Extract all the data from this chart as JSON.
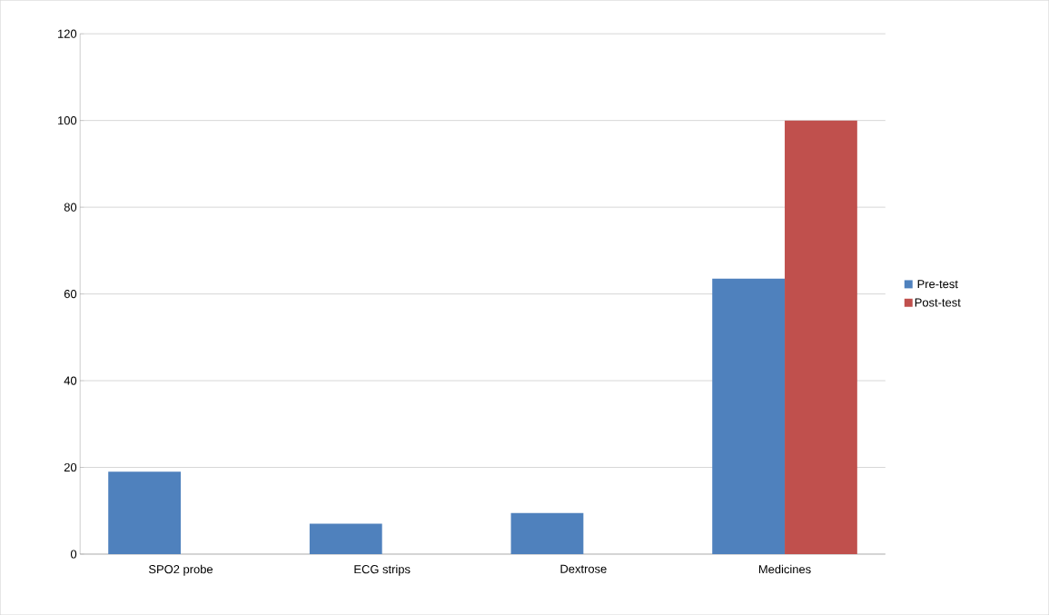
{
  "chart_data": {
    "type": "bar",
    "categories": [
      "SPO2 probe",
      "ECG strips",
      "Dextrose",
      "Medicines"
    ],
    "series": [
      {
        "name": "Pre-test",
        "color": "#4f81bd",
        "values": [
          19,
          7,
          9.5,
          63.5
        ]
      },
      {
        "name": "Post-test",
        "color": "#c0504d",
        "values": [
          0,
          0,
          0,
          100
        ]
      }
    ],
    "ylim": [
      0,
      120
    ],
    "yticks": [
      0,
      20,
      40,
      60,
      80,
      100,
      120
    ],
    "grid": "y",
    "legend": "right"
  }
}
